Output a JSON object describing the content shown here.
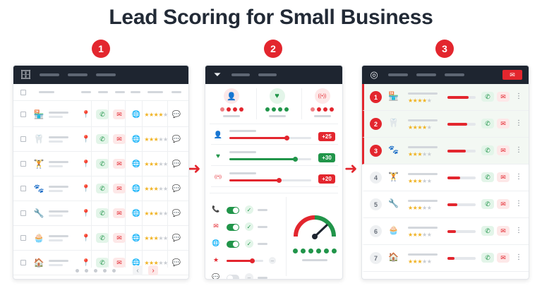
{
  "title": "Lead Scoring for Small Business",
  "steps": [
    "1",
    "2",
    "3"
  ],
  "colors": {
    "accent": "#e3262e",
    "green": "#21954a",
    "header": "#1e2530",
    "star": "#f0b323"
  },
  "panel1": {
    "header_icon": "database-icon",
    "rows": [
      {
        "icon": "storefront-icon",
        "glyph": "🏪",
        "stars": 4
      },
      {
        "icon": "tooth-icon",
        "glyph": "🦷",
        "stars": 3
      },
      {
        "icon": "dumbbell-icon",
        "glyph": "🏋",
        "stars": 3
      },
      {
        "icon": "paw-icon",
        "glyph": "🐾",
        "stars": 3
      },
      {
        "icon": "wrench-icon",
        "glyph": "🔧",
        "stars": 3
      },
      {
        "icon": "cupcake-icon",
        "glyph": "🧁",
        "stars": 3
      },
      {
        "icon": "house-icon",
        "glyph": "🏠",
        "stars": 3
      }
    ],
    "pagination": {
      "dots": 5,
      "prev": "‹",
      "next": "›"
    }
  },
  "panel2": {
    "header_icon": "filter-icon",
    "kpis": [
      {
        "icon": "person-icon",
        "glyph": "👤",
        "color": "#e3262e"
      },
      {
        "icon": "heart-icon",
        "glyph": "♥",
        "color": "#21954a"
      },
      {
        "icon": "signal-icon",
        "glyph": "((•))",
        "color": "#e3262e"
      }
    ],
    "sliders": [
      {
        "icon": "person-icon",
        "glyph": "👤",
        "fill": 0.7,
        "color": "#e3262e",
        "score": "+25"
      },
      {
        "icon": "heart-icon",
        "glyph": "♥",
        "fill": 0.8,
        "color": "#21954a",
        "score": "+30"
      },
      {
        "icon": "signal-icon",
        "glyph": "((•))",
        "fill": 0.6,
        "color": "#e3262e",
        "score": "+20"
      }
    ],
    "toggles": [
      {
        "icon": "phone-icon",
        "glyph": "📞",
        "on": true
      },
      {
        "icon": "mail-icon",
        "glyph": "✉",
        "on": true
      },
      {
        "icon": "globe-icon",
        "glyph": "🌐",
        "on": true
      },
      {
        "icon": "star-icon",
        "glyph": "★",
        "slider": true
      },
      {
        "icon": "chat-icon",
        "glyph": "💬",
        "on": false
      }
    ]
  },
  "panel3": {
    "header_icon": "target-icon",
    "rows": [
      {
        "rank": "1",
        "icon": "storefront-icon",
        "glyph": "🏪",
        "stars": 4,
        "score": 0.75,
        "hot": true
      },
      {
        "rank": "2",
        "icon": "tooth-icon",
        "glyph": "🦷",
        "stars": 4,
        "score": 0.7,
        "hot": true
      },
      {
        "rank": "3",
        "icon": "paw-icon",
        "glyph": "🐾",
        "stars": 3,
        "score": 0.65,
        "hot": true
      },
      {
        "rank": "4",
        "icon": "dumbbell-icon",
        "glyph": "🏋",
        "stars": 3,
        "score": 0.45,
        "hot": false
      },
      {
        "rank": "5",
        "icon": "wrench-icon",
        "glyph": "🔧",
        "stars": 3,
        "score": 0.35,
        "hot": false
      },
      {
        "rank": "6",
        "icon": "cupcake-icon",
        "glyph": "🧁",
        "stars": 3,
        "score": 0.3,
        "hot": false
      },
      {
        "rank": "7",
        "icon": "house-icon",
        "glyph": "🏠",
        "stars": 3,
        "score": 0.25,
        "hot": false
      }
    ]
  }
}
